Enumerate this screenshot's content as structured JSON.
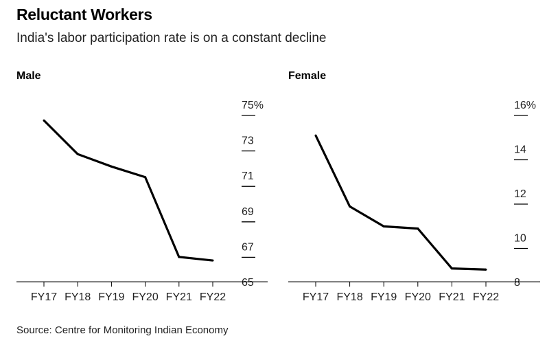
{
  "header": {
    "title": "Reluctant Workers",
    "subtitle": "India's labor participation rate is on a constant decline"
  },
  "source": "Source: Centre for Monitoring Indian Economy",
  "colors": {
    "line": "#000000",
    "axis": "#000000",
    "text": "#222222"
  },
  "chart_data": [
    {
      "type": "line",
      "title": "Male",
      "categories": [
        "FY17",
        "FY18",
        "FY19",
        "FY20",
        "FY21",
        "FY22"
      ],
      "values": [
        74.1,
        72.2,
        71.5,
        70.9,
        66.4,
        66.2
      ],
      "ylim": [
        65,
        75
      ],
      "yticks": [
        75,
        73,
        71,
        69,
        67,
        65
      ],
      "ytick_labels": [
        "75%",
        "73",
        "71",
        "69",
        "67",
        "65"
      ],
      "y_axis_side": "right",
      "grid": false
    },
    {
      "type": "line",
      "title": "Female",
      "categories": [
        "FY17",
        "FY18",
        "FY19",
        "FY20",
        "FY21",
        "FY22"
      ],
      "values": [
        14.6,
        11.4,
        10.5,
        10.4,
        8.6,
        8.55
      ],
      "ylim": [
        8,
        16
      ],
      "yticks": [
        16,
        14,
        12,
        10,
        8
      ],
      "ytick_labels": [
        "16%",
        "14",
        "12",
        "10",
        "8"
      ],
      "y_axis_side": "right",
      "grid": false
    }
  ]
}
